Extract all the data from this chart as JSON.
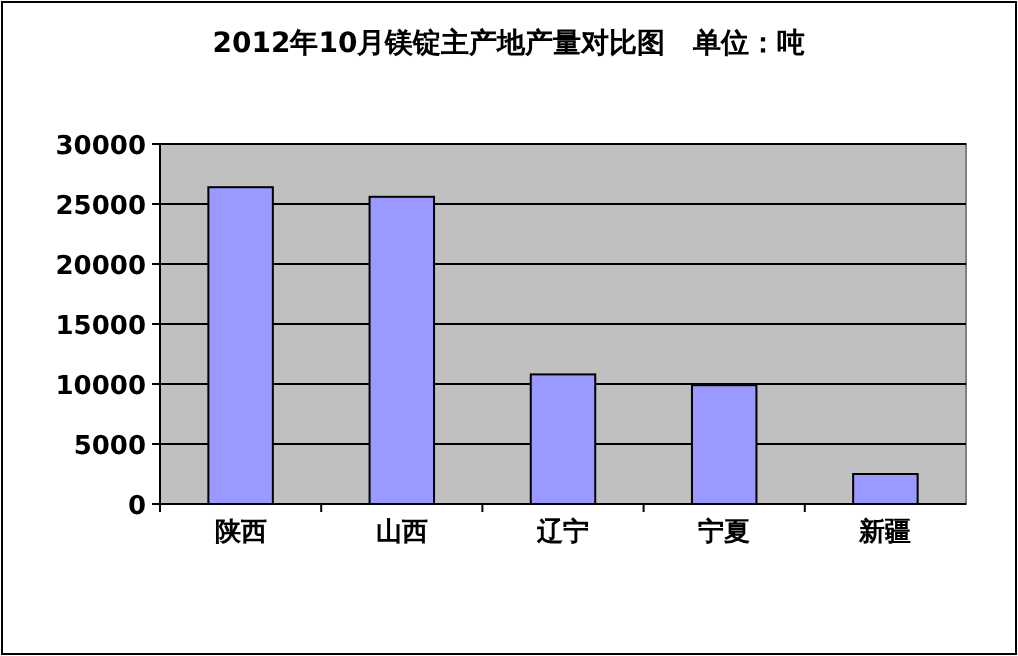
{
  "chart_data": {
    "type": "bar",
    "title": "2012年10月镁锭主产地产量对比图　单位：吨",
    "categories": [
      "陕西",
      "山西",
      "辽宁",
      "宁夏",
      "新疆"
    ],
    "values": [
      26400,
      25600,
      10800,
      9900,
      2500
    ],
    "color": "#9999ff",
    "ylim": [
      0,
      30000
    ],
    "yticks": [
      0,
      5000,
      10000,
      15000,
      20000,
      25000,
      30000
    ],
    "grid": "y"
  }
}
